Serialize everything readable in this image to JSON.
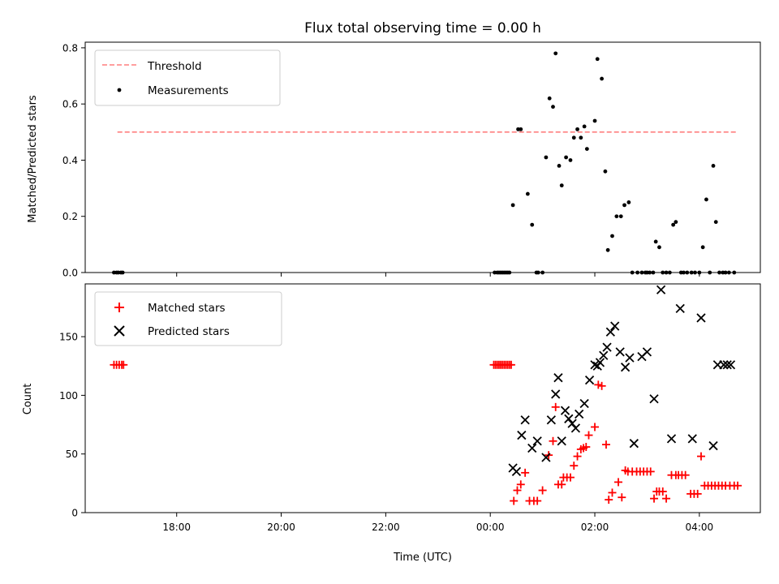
{
  "title": "Flux total observing time = 0.00 h",
  "xlabel": "Time (UTC)",
  "x_ticks": [
    "18:00",
    "20:00",
    "22:00",
    "00:00",
    "02:00",
    "04:00"
  ],
  "colors": {
    "threshold": "#ff7f7f",
    "measurement": "#000000",
    "matched": "#ff0000",
    "predicted": "#000000"
  },
  "chart_data": [
    {
      "type": "scatter",
      "ylabel": "Matched/Predicted stars",
      "ylim": [
        0,
        0.82
      ],
      "xlim": [
        "16:15",
        "05:10"
      ],
      "y_ticks": [
        "0.0",
        "0.2",
        "0.4",
        "0.6",
        "0.8"
      ],
      "legend": {
        "placement": "upper-left",
        "entries": [
          "Threshold",
          "Measurements"
        ]
      },
      "threshold": {
        "name": "Threshold",
        "x": [
          "16:52",
          "04:43"
        ],
        "y": 0.5
      },
      "series": [
        {
          "name": "Measurements",
          "x": [
            "16:48",
            "16:51",
            "16:53",
            "16:56",
            "16:58",
            "00:05",
            "00:08",
            "00:10",
            "00:12",
            "00:14",
            "00:16",
            "00:18",
            "00:20",
            "00:22",
            "00:26",
            "00:32",
            "00:35",
            "00:43",
            "00:48",
            "00:53",
            "00:55",
            "01:00",
            "01:04",
            "01:08",
            "01:12",
            "01:15",
            "01:19",
            "01:22",
            "01:27",
            "01:32",
            "01:36",
            "01:40",
            "01:44",
            "01:48",
            "01:51",
            "02:00",
            "02:03",
            "02:08",
            "02:12",
            "02:15",
            "02:20",
            "02:25",
            "02:30",
            "02:34",
            "02:39",
            "02:43",
            "02:49",
            "02:54",
            "02:58",
            "03:00",
            "03:03",
            "03:07",
            "03:10",
            "03:14",
            "03:18",
            "03:22",
            "03:26",
            "03:30",
            "03:33",
            "03:39",
            "03:42",
            "03:46",
            "03:51",
            "03:55",
            "04:00",
            "04:04",
            "04:08",
            "04:12",
            "04:16",
            "04:19",
            "04:23",
            "04:27",
            "04:30",
            "04:34",
            "04:40"
          ],
          "y": [
            0.0,
            0.0,
            0.0,
            0.0,
            0.0,
            0.0,
            0.0,
            0.0,
            0.0,
            0.0,
            0.0,
            0.0,
            0.0,
            0.0,
            0.24,
            0.51,
            0.51,
            0.28,
            0.17,
            0.0,
            0.0,
            0.0,
            0.41,
            0.62,
            0.59,
            0.78,
            0.38,
            0.31,
            0.41,
            0.4,
            0.48,
            0.51,
            0.48,
            0.52,
            0.44,
            0.54,
            0.76,
            0.69,
            0.36,
            0.08,
            0.13,
            0.2,
            0.2,
            0.24,
            0.25,
            0.0,
            0.0,
            0.0,
            0.0,
            0.0,
            0.0,
            0.0,
            0.11,
            0.09,
            0.0,
            0.0,
            0.0,
            0.17,
            0.18,
            0.0,
            0.0,
            0.0,
            0.0,
            0.0,
            0.0,
            0.09,
            0.26,
            0.0,
            0.38,
            0.18,
            0.0,
            0.0,
            0.0,
            0.0,
            0.0
          ]
        }
      ]
    },
    {
      "type": "scatter",
      "ylabel": "Count",
      "ylim": [
        0,
        195
      ],
      "xlim": [
        "16:15",
        "05:10"
      ],
      "y_ticks": [
        "0",
        "50",
        "100",
        "150"
      ],
      "legend": {
        "placement": "upper-left",
        "entries": [
          "Matched stars",
          "Predicted stars"
        ]
      },
      "series": [
        {
          "name": "Matched stars",
          "marker": "plus",
          "x": [
            "16:48",
            "16:51",
            "16:54",
            "16:57",
            "16:59",
            "00:04",
            "00:06",
            "00:08",
            "00:10",
            "00:12",
            "00:14",
            "00:16",
            "00:18",
            "00:20",
            "00:22",
            "00:24",
            "00:27",
            "00:31",
            "00:35",
            "00:40",
            "00:45",
            "00:50",
            "00:54",
            "01:00",
            "01:07",
            "01:12",
            "01:15",
            "01:18",
            "01:22",
            "01:24",
            "01:28",
            "01:32",
            "01:36",
            "01:40",
            "01:44",
            "01:47",
            "01:50",
            "01:53",
            "02:00",
            "02:04",
            "02:08",
            "02:13",
            "02:16",
            "02:20",
            "02:27",
            "02:31",
            "02:35",
            "02:38",
            "02:43",
            "02:48",
            "02:52",
            "02:56",
            "03:00",
            "03:04",
            "03:08",
            "03:11",
            "03:14",
            "03:18",
            "03:22",
            "03:28",
            "03:33",
            "03:36",
            "03:40",
            "03:44",
            "03:50",
            "03:54",
            "03:58",
            "04:02",
            "04:06",
            "04:10",
            "04:14",
            "04:18",
            "04:22",
            "04:26",
            "04:30",
            "04:35",
            "04:40",
            "04:44"
          ],
          "y": [
            126,
            126,
            126,
            126,
            126,
            126,
            126,
            126,
            126,
            126,
            126,
            126,
            126,
            126,
            126,
            126,
            10,
            19,
            24,
            34,
            10,
            10,
            10,
            19,
            49,
            61,
            90,
            24,
            24,
            30,
            30,
            30,
            40,
            48,
            54,
            55,
            56,
            66,
            73,
            109,
            108,
            58,
            11,
            17,
            26,
            13,
            36,
            35,
            35,
            35,
            35,
            35,
            35,
            35,
            12,
            18,
            18,
            18,
            12,
            32,
            32,
            32,
            32,
            32,
            16,
            16,
            16,
            48,
            23,
            23,
            23,
            23,
            23,
            23,
            23,
            23,
            23,
            23
          ]
        },
        {
          "name": "Predicted stars",
          "marker": "x",
          "x": [
            "00:26",
            "00:30",
            "00:36",
            "00:40",
            "00:48",
            "00:54",
            "01:04",
            "01:10",
            "01:15",
            "01:18",
            "01:22",
            "01:26",
            "01:30",
            "01:34",
            "01:38",
            "01:42",
            "01:48",
            "01:54",
            "02:00",
            "02:03",
            "02:06",
            "02:10",
            "02:14",
            "02:18",
            "02:23",
            "02:29",
            "02:35",
            "02:40",
            "02:45",
            "02:54",
            "03:00",
            "03:08",
            "03:16",
            "03:28",
            "03:38",
            "03:52",
            "04:02",
            "04:16",
            "04:21",
            "04:28",
            "04:32",
            "04:36"
          ],
          "y": [
            38,
            35,
            66,
            79,
            55,
            61,
            47,
            79,
            101,
            115,
            61,
            87,
            80,
            76,
            72,
            84,
            93,
            113,
            126,
            125,
            128,
            134,
            141,
            154,
            159,
            137,
            124,
            132,
            59,
            133,
            137,
            97,
            190,
            63,
            174,
            63,
            166,
            57,
            126,
            126,
            126,
            126
          ]
        }
      ]
    }
  ]
}
